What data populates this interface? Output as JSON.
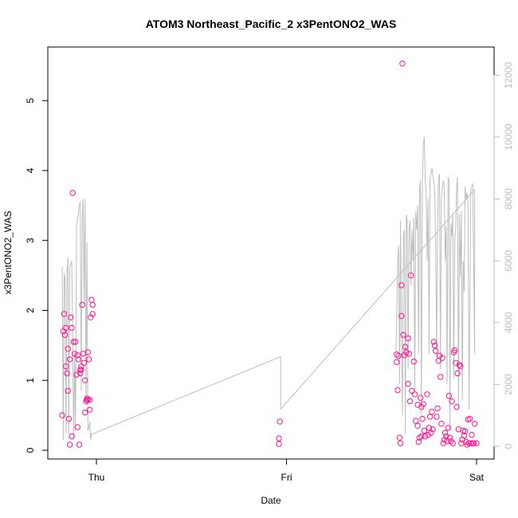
{
  "chart_data": {
    "type": "scatter",
    "title": "ATOM3 Northeast_Pacific_2 x3PentONO2_WAS",
    "xlabel": "Date",
    "ylabel": "x3PentONO2_WAS",
    "x_ticks": [
      "Thu",
      "Fri",
      "Sat"
    ],
    "y_ticks": [
      "0",
      "1",
      "2",
      "3",
      "4",
      "5"
    ],
    "y_right_ticks": [
      "0",
      "2000",
      "4000",
      "6000",
      "8000",
      "10000",
      "12000"
    ],
    "ylim": [
      0,
      5.6
    ],
    "y_right_lim": [
      0,
      12500
    ],
    "colors": {
      "points": "#ff1493",
      "line": "#bebebe",
      "frame": "#000000",
      "right_axis": "#bdbdbd"
    },
    "series": [
      {
        "type": "scatter",
        "x": [
          -0.18,
          -0.175,
          -0.17,
          -0.165,
          -0.16,
          -0.16,
          -0.155,
          -0.15,
          -0.15,
          -0.145,
          -0.14,
          -0.14,
          -0.135,
          -0.13,
          -0.13,
          -0.125,
          -0.12,
          -0.115,
          -0.11,
          -0.105,
          -0.1,
          -0.1,
          -0.095,
          -0.09,
          -0.085,
          -0.085,
          -0.08,
          -0.08,
          -0.075,
          -0.07,
          -0.065,
          -0.06,
          -0.06,
          -0.055,
          -0.05,
          -0.05,
          -0.045,
          -0.045,
          -0.04,
          -0.035,
          -0.035,
          -0.03,
          -0.025,
          -0.02,
          -0.02,
          0.96,
          0.96,
          0.965,
          1.58,
          1.58,
          1.585,
          1.59,
          1.595,
          1.6,
          1.605,
          1.605,
          1.61,
          1.615,
          1.62,
          1.625,
          1.63,
          1.64,
          1.64,
          1.645,
          1.65,
          1.655,
          1.66,
          1.67,
          1.675,
          1.68,
          1.69,
          1.69,
          1.695,
          1.7,
          1.705,
          1.71,
          1.71,
          1.715,
          1.72,
          1.725,
          1.73,
          1.74,
          1.745,
          1.75,
          1.755,
          1.76,
          1.765,
          1.77,
          1.775,
          1.78,
          1.785,
          1.79,
          1.795,
          1.8,
          1.805,
          1.81,
          1.815,
          1.82,
          1.825,
          1.83,
          1.835,
          1.84,
          1.845,
          1.85,
          1.855,
          1.86,
          1.865,
          1.87,
          1.875,
          1.88,
          1.885,
          1.89,
          1.895,
          1.9,
          1.905,
          1.91,
          1.915,
          1.92,
          1.925,
          1.93,
          1.935,
          1.94,
          1.945,
          1.95,
          1.955,
          1.96,
          1.965,
          1.97,
          1.975,
          1.98,
          1.985,
          1.99,
          2.0
        ],
        "y": [
          0.5,
          1.7,
          1.95,
          1.65,
          1.2,
          1.75,
          1.1,
          0.85,
          1.45,
          0.45,
          0.08,
          1.3,
          1.9,
          1.75,
          0.2,
          3.68,
          1.55,
          1.38,
          1.55,
          1.08,
          0.33,
          1.36,
          1.3,
          0.08,
          1.1,
          1.15,
          1.15,
          1.2,
          2.08,
          1.38,
          1.25,
          0.54,
          1.0,
          0.7,
          0.74,
          0.72,
          1.4,
          0.72,
          1.3,
          0.58,
          0.72,
          1.9,
          2.15,
          2.08,
          1.95,
          0.17,
          0.09,
          0.41,
          1.26,
          1.37,
          0.86,
          1.35,
          0.18,
          0.1,
          1.92,
          2.36,
          5.53,
          1.65,
          1.36,
          1.48,
          1.4,
          1.6,
          0.95,
          1.38,
          0.7,
          2.5,
          0.85,
          1.27,
          0.8,
          0.42,
          0.65,
          0.35,
          0.12,
          0.18,
          0.75,
          0.62,
          0.2,
          0.45,
          0.66,
          0.28,
          0.2,
          0.8,
          0.22,
          0.32,
          0.48,
          0.25,
          0.55,
          0.3,
          1.55,
          1.5,
          1.42,
          0.48,
          0.6,
          1.28,
          1.35,
          1.05,
          0.38,
          1.32,
          0.1,
          0.15,
          0.25,
          0.2,
          0.13,
          0.32,
          0.78,
          0.18,
          0.13,
          0.7,
          0.1,
          1.4,
          1.43,
          1.25,
          0.62,
          1.1,
          0.3,
          1.22,
          1.2,
          0.1,
          0.15,
          0.28,
          0.21,
          0.27,
          0.12,
          0.08,
          0.44,
          0.1,
          0.45,
          0.1,
          0.22,
          0.1,
          0.1,
          0.38,
          0.1
        ]
      },
      {
        "type": "line",
        "axis": "right",
        "x": [
          -0.18,
          -0.175,
          -0.17,
          -0.165,
          -0.16,
          -0.155,
          -0.15,
          -0.145,
          -0.14,
          -0.135,
          -0.13,
          -0.125,
          -0.12,
          -0.115,
          -0.11,
          -0.105,
          -0.1,
          -0.095,
          -0.09,
          -0.085,
          -0.08,
          -0.075,
          -0.07,
          -0.065,
          -0.06,
          -0.055,
          -0.05,
          -0.045,
          -0.04,
          -0.035,
          -0.03,
          -0.025,
          -0.02,
          0.97,
          0.97,
          1.99,
          1.99,
          1.98,
          1.97,
          1.96,
          1.955,
          1.95,
          1.945,
          1.94,
          1.935,
          1.93,
          1.925,
          1.92,
          1.915,
          1.91,
          1.905,
          1.9,
          1.895,
          1.89,
          1.885,
          1.88,
          1.875,
          1.87,
          1.865,
          1.86,
          1.855,
          1.85,
          1.845,
          1.84,
          1.835,
          1.83,
          1.825,
          1.82,
          1.815,
          1.81,
          1.805,
          1.8,
          1.795,
          1.79,
          1.785,
          1.78,
          1.775,
          1.77,
          1.765,
          1.76,
          1.755,
          1.75,
          1.745,
          1.74,
          1.735,
          1.73,
          1.725,
          1.72,
          1.715,
          1.71,
          1.705,
          1.7,
          1.695,
          1.69,
          1.685,
          1.68,
          1.675,
          1.67,
          1.665,
          1.66,
          1.655,
          1.65,
          1.645,
          1.64,
          1.635,
          1.63,
          1.625,
          1.62,
          1.615,
          1.61,
          1.605,
          1.6,
          1.595,
          1.59,
          1.585,
          1.58,
          1.575
        ],
        "y": [
          5800,
          200,
          5600,
          5400,
          400,
          5600,
          6100,
          400,
          5800,
          5900,
          6000,
          3500,
          200,
          3000,
          500,
          7100,
          7300,
          7500,
          7800,
          7900,
          1800,
          7400,
          8000,
          4600,
          8000,
          1500,
          6600,
          500,
          600,
          800,
          200,
          400,
          400,
          2900,
          1200,
          8300,
          3000,
          8500,
          8300,
          1200,
          7800,
          8200,
          8000,
          8400,
          5000,
          6000,
          1500,
          7600,
          5500,
          7500,
          1200,
          8700,
          8400,
          7000,
          6700,
          2200,
          7500,
          6800,
          7200,
          500,
          8600,
          8700,
          2000,
          7100,
          6000,
          8300,
          8600,
          8400,
          8000,
          2500,
          8800,
          8700,
          7300,
          3000,
          6500,
          8200,
          8600,
          8800,
          9000,
          8800,
          8600,
          3000,
          8000,
          6000,
          8200,
          8600,
          10000,
          9800,
          8400,
          1000,
          8600,
          8300,
          3000,
          7800,
          7000,
          7600,
          1800,
          7400,
          6000,
          7000,
          5200,
          7300,
          7000,
          2500,
          7300,
          7500,
          400,
          7000,
          6800,
          1000,
          3500,
          7300,
          2000,
          6500,
          6000,
          4000,
          3000
        ]
      }
    ]
  }
}
